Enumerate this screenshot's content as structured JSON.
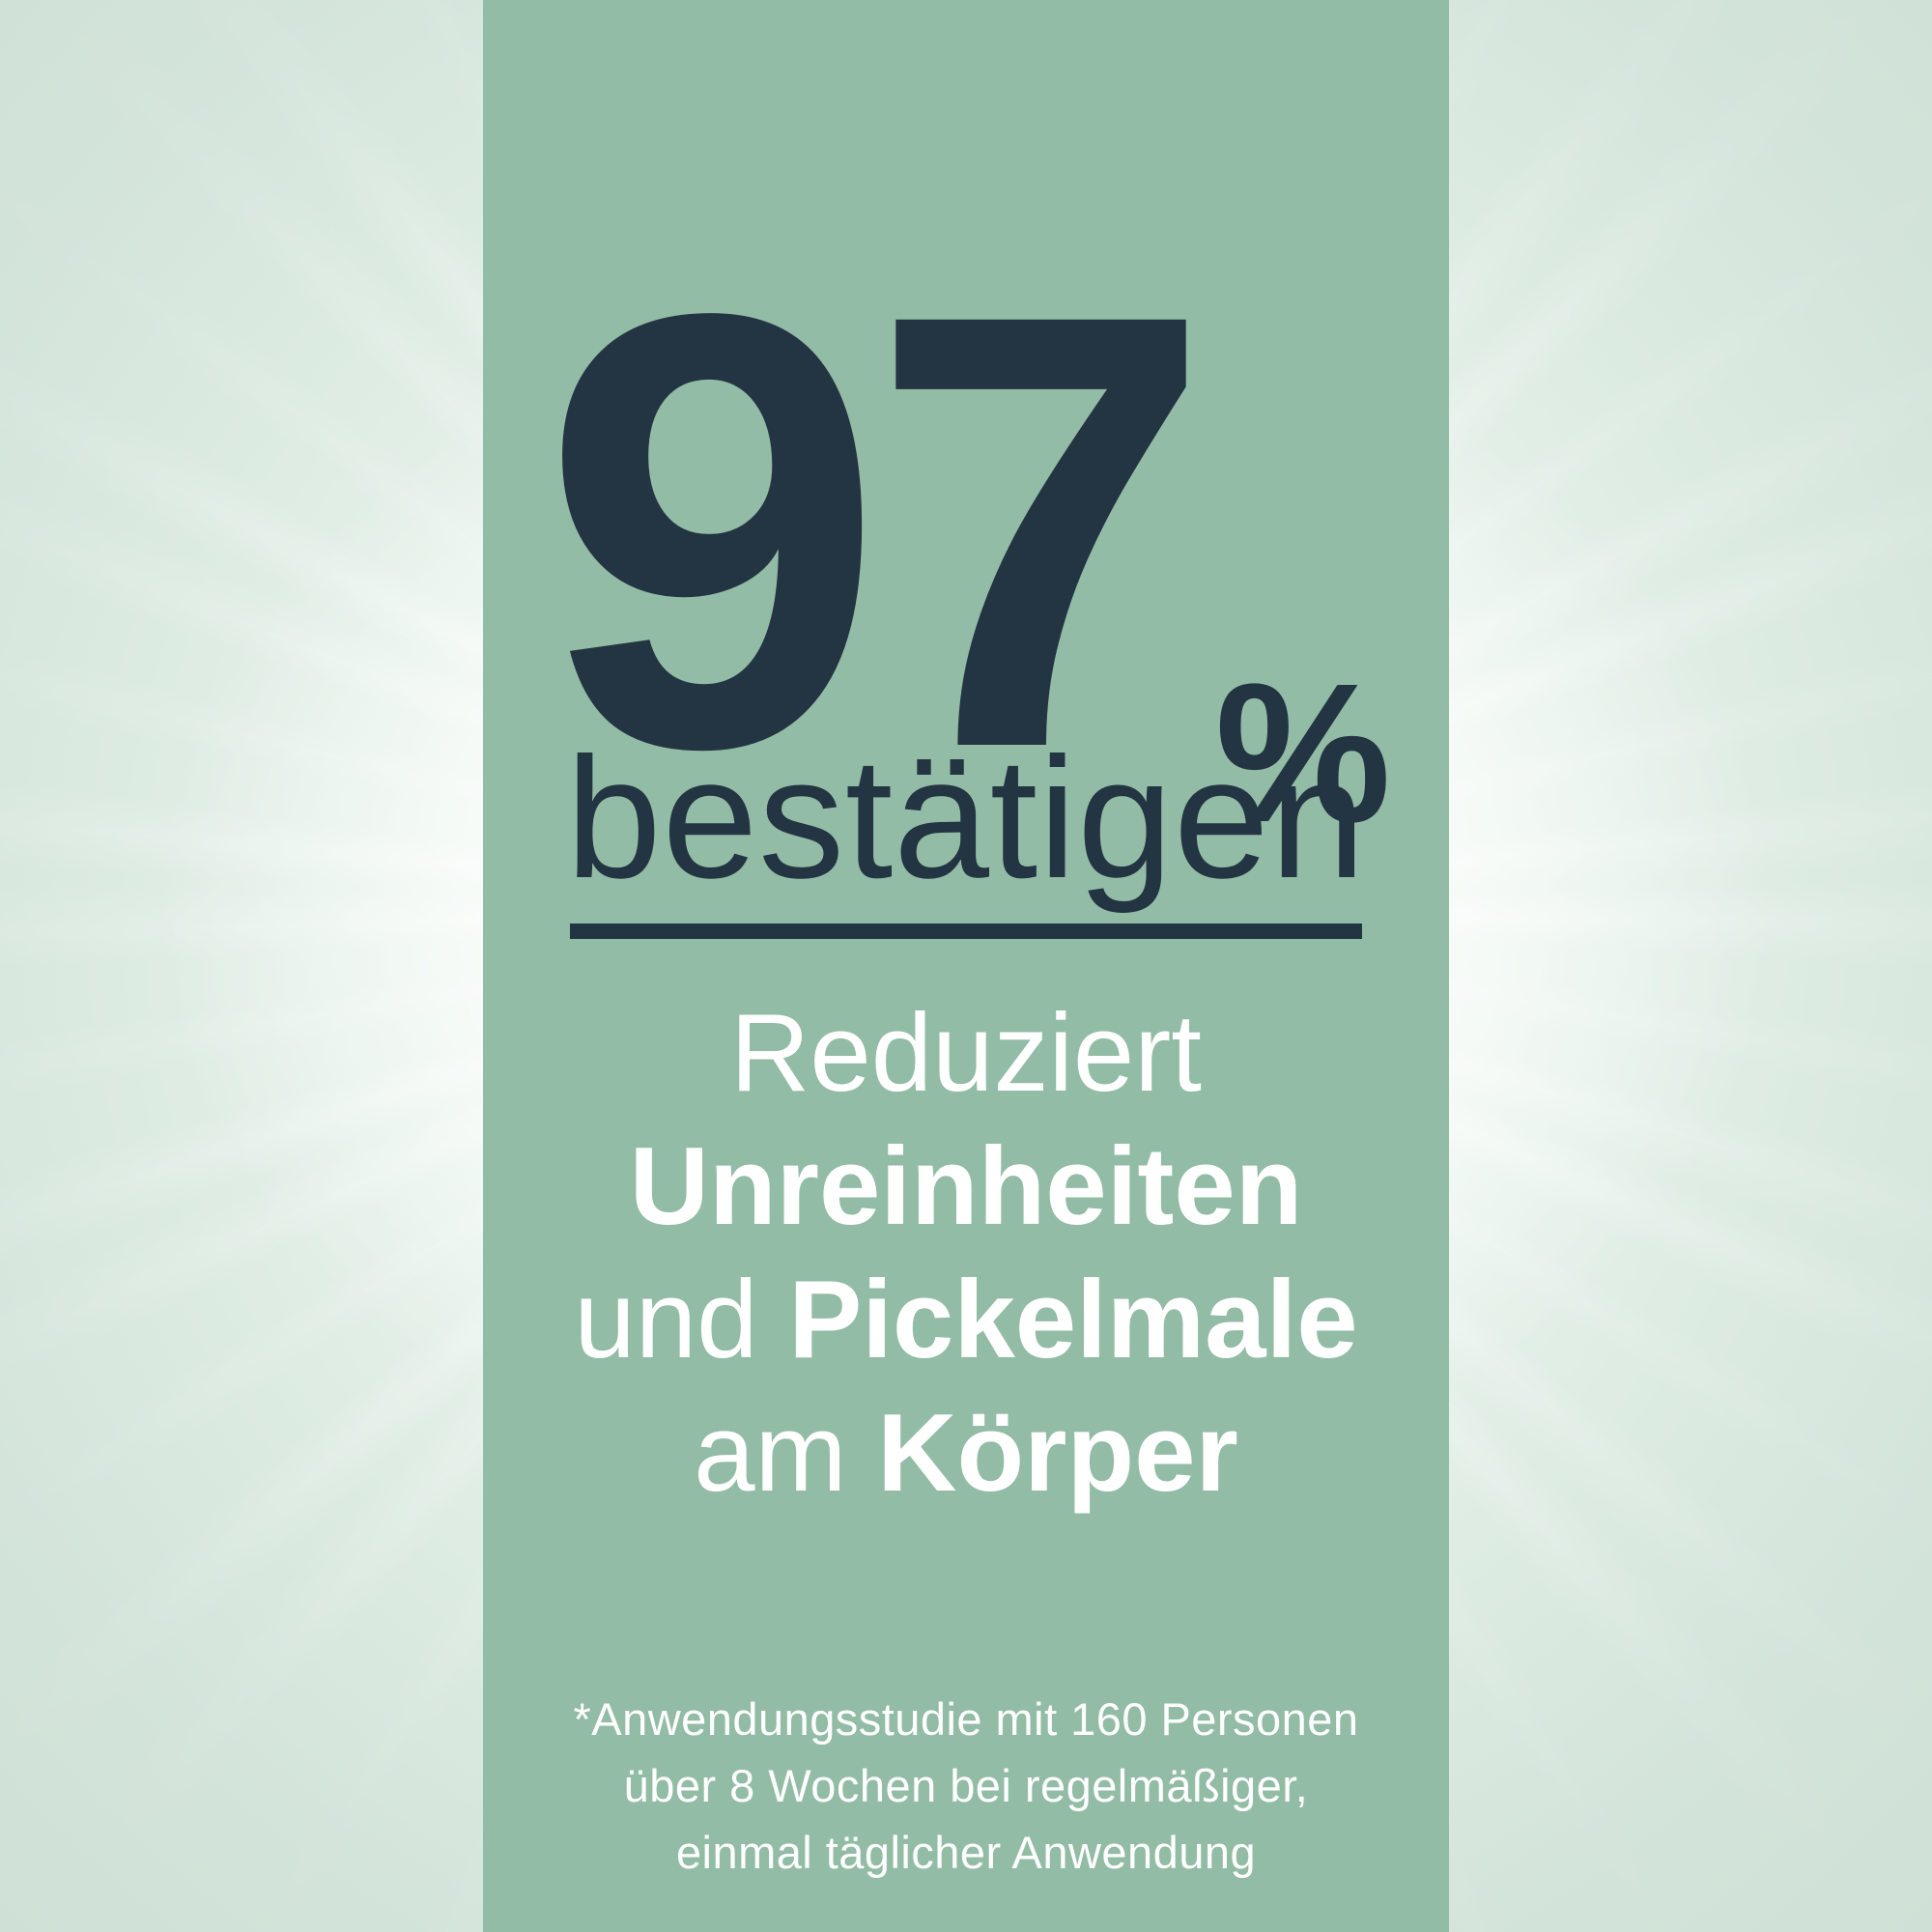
{
  "stat": {
    "value": "97",
    "unit": "%",
    "verb": "bestätigen"
  },
  "claim": {
    "lines": [
      {
        "segments": [
          {
            "text": "Reduziert",
            "bold": false
          }
        ]
      },
      {
        "segments": [
          {
            "text": "Unreinheiten",
            "bold": true
          }
        ]
      },
      {
        "segments": [
          {
            "text": "und ",
            "bold": false
          },
          {
            "text": "Pickelmale",
            "bold": true
          }
        ]
      },
      {
        "segments": [
          {
            "text": "am ",
            "bold": false
          },
          {
            "text": "Körper",
            "bold": true
          }
        ]
      }
    ]
  },
  "footnote": {
    "lines": [
      "*Anwendungsstudie mit 160 Personen",
      "über 8 Wochen bei regelmäßiger,",
      "einmal täglicher Anwendung"
    ]
  },
  "colors": {
    "accent_navy": "#233442",
    "panel_green": "#92bca5",
    "background_mint": "#d7e6dd",
    "text_white": "#ffffff"
  }
}
